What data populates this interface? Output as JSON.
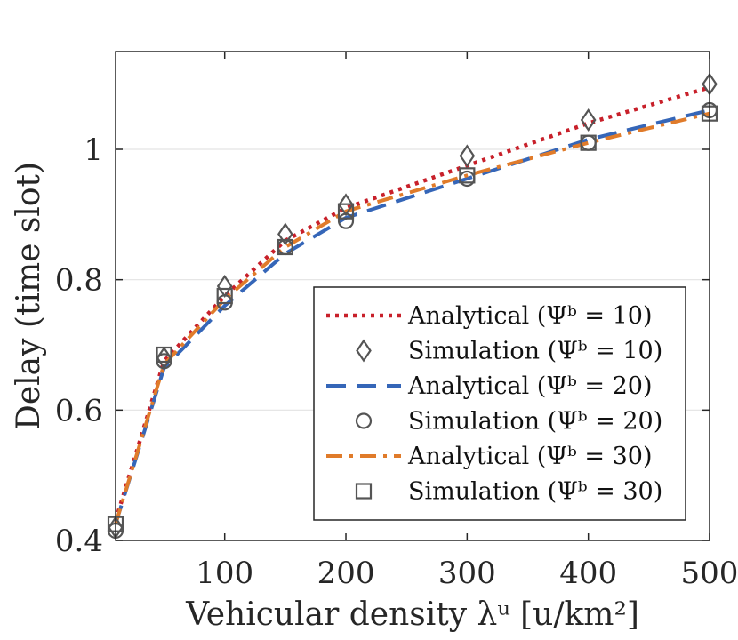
{
  "chart_data": {
    "type": "line",
    "title": "",
    "xlabel": "Vehicular density λᵘ [u/km²]",
    "ylabel": "Delay (time slot)",
    "xlim": [
      10,
      500
    ],
    "ylim": [
      0.4,
      1.15
    ],
    "xticks": [
      100,
      200,
      300,
      400,
      500
    ],
    "xtick_labels": [
      "100",
      "200",
      "300",
      "400",
      "500"
    ],
    "yticks": [
      0.4,
      0.6,
      0.8,
      1.0
    ],
    "ytick_labels": [
      "0.4",
      "0.6",
      "0.8",
      "1"
    ],
    "grid": "horizontal",
    "legend_position": "bottom-right",
    "series": [
      {
        "name": "Analytical (Ψᵇ = 10)",
        "kind": "line",
        "color": "#c8202a",
        "dash": "dotted",
        "x": [
          10,
          50,
          100,
          150,
          200,
          300,
          400,
          500
        ],
        "y": [
          0.43,
          0.675,
          0.775,
          0.86,
          0.91,
          0.975,
          1.04,
          1.095
        ]
      },
      {
        "name": "Simulation (Ψᵇ = 10)",
        "kind": "marker",
        "marker": "diamond",
        "color": "#555555",
        "x": [
          10,
          50,
          100,
          150,
          200,
          300,
          400,
          500
        ],
        "y": [
          0.42,
          0.68,
          0.79,
          0.87,
          0.915,
          0.99,
          1.045,
          1.1
        ]
      },
      {
        "name": "Analytical (Ψᵇ = 20)",
        "kind": "line",
        "color": "#3566b8",
        "dash": "dashed",
        "x": [
          10,
          50,
          100,
          150,
          200,
          300,
          400,
          500
        ],
        "y": [
          0.425,
          0.665,
          0.76,
          0.84,
          0.895,
          0.955,
          1.015,
          1.06
        ]
      },
      {
        "name": "Simulation (Ψᵇ = 20)",
        "kind": "marker",
        "marker": "circle",
        "color": "#555555",
        "x": [
          10,
          50,
          100,
          150,
          200,
          300,
          400,
          500
        ],
        "y": [
          0.415,
          0.675,
          0.765,
          0.85,
          0.89,
          0.955,
          1.01,
          1.06
        ]
      },
      {
        "name": "Analytical (Ψᵇ = 30)",
        "kind": "line",
        "color": "#e07b2a",
        "dash": "dashdot",
        "x": [
          10,
          50,
          100,
          150,
          200,
          300,
          400,
          500
        ],
        "y": [
          0.425,
          0.67,
          0.77,
          0.85,
          0.905,
          0.96,
          1.01,
          1.055
        ]
      },
      {
        "name": "Simulation (Ψᵇ = 30)",
        "kind": "marker",
        "marker": "square",
        "color": "#555555",
        "x": [
          10,
          50,
          100,
          150,
          200,
          300,
          400,
          500
        ],
        "y": [
          0.425,
          0.685,
          0.775,
          0.85,
          0.905,
          0.96,
          1.01,
          1.055
        ]
      }
    ]
  }
}
